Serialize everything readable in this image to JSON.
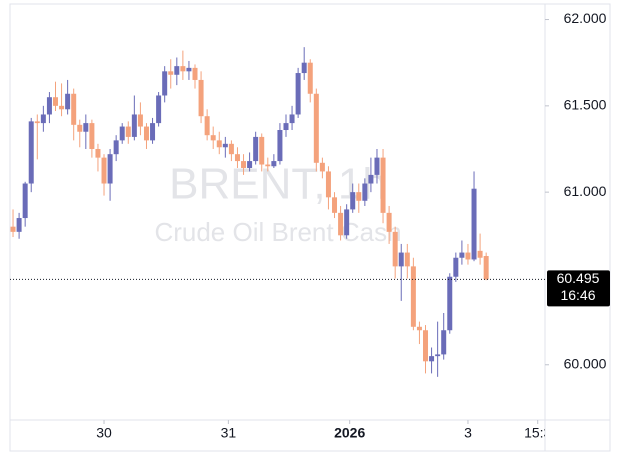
{
  "chart_data": {
    "type": "candlestick",
    "watermark": "BRENT, 1h",
    "watermark_subtitle": "Crude Oil Brent Cash",
    "up_color": "#6a6cb8",
    "down_color": "#f4a27c",
    "open": [
      60.8,
      60.77,
      60.85,
      61.05,
      61.41,
      61.4,
      61.45,
      61.55,
      61.5,
      61.48,
      61.57,
      61.39,
      61.35,
      61.4,
      61.25,
      61.2,
      61.05,
      61.22,
      61.3,
      61.38,
      61.32,
      61.45,
      61.38,
      61.3,
      61.4,
      61.56,
      61.7,
      61.68,
      61.73,
      61.7,
      61.72,
      61.65,
      61.44,
      61.33,
      61.3,
      61.26,
      61.28,
      61.22,
      61.18,
      61.14,
      61.18,
      61.32,
      61.16,
      61.15,
      61.18,
      61.36,
      61.4,
      61.45,
      61.69,
      61.75,
      61.57,
      61.17,
      61.12,
      60.97,
      60.88,
      60.75,
      60.9,
      61.0,
      60.95,
      61.05,
      61.1,
      61.2,
      60.88,
      60.77,
      60.57,
      60.65,
      60.57,
      60.22,
      60.2,
      60.02,
      60.05,
      60.06,
      60.2,
      60.51,
      60.62,
      60.65,
      60.61,
      60.66,
      60.63
    ],
    "high": [
      60.9,
      60.88,
      61.06,
      61.43,
      61.45,
      61.5,
      61.58,
      61.64,
      61.63,
      61.65,
      61.6,
      61.42,
      61.45,
      61.42,
      61.28,
      61.22,
      61.25,
      61.33,
      61.4,
      61.41,
      61.56,
      61.52,
      61.4,
      61.43,
      61.58,
      61.73,
      61.77,
      61.78,
      61.82,
      61.76,
      61.74,
      61.7,
      61.48,
      61.38,
      61.35,
      61.32,
      61.3,
      61.26,
      61.22,
      61.23,
      61.35,
      61.34,
      61.2,
      61.22,
      61.4,
      61.45,
      61.5,
      61.72,
      61.84,
      61.77,
      61.6,
      61.2,
      61.15,
      61.0,
      60.92,
      60.93,
      61.05,
      61.05,
      61.08,
      61.2,
      61.25,
      61.25,
      60.92,
      60.8,
      60.7,
      60.7,
      60.62,
      60.25,
      60.23,
      60.1,
      60.25,
      60.3,
      60.53,
      60.65,
      60.72,
      60.7,
      61.12,
      60.76,
      60.65
    ],
    "low": [
      60.74,
      60.73,
      60.8,
      61.0,
      61.19,
      61.35,
      61.4,
      61.47,
      61.44,
      61.45,
      61.3,
      61.26,
      61.25,
      61.2,
      61.12,
      60.98,
      60.95,
      61.18,
      61.28,
      61.28,
      61.3,
      61.33,
      61.25,
      61.28,
      61.38,
      61.52,
      61.6,
      61.62,
      61.65,
      61.65,
      61.6,
      61.4,
      61.3,
      61.25,
      61.22,
      61.2,
      61.18,
      61.14,
      61.1,
      61.12,
      61.16,
      61.12,
      61.12,
      61.14,
      61.16,
      61.32,
      61.36,
      61.43,
      61.65,
      61.52,
      61.12,
      61.08,
      60.9,
      60.85,
      60.72,
      60.73,
      60.88,
      60.88,
      60.92,
      61.0,
      61.05,
      60.82,
      60.7,
      60.5,
      60.37,
      60.5,
      60.2,
      60.12,
      59.95,
      59.95,
      59.93,
      60.03,
      60.18,
      60.48,
      60.58,
      60.58,
      60.6,
      60.58,
      60.49
    ],
    "close": [
      60.77,
      60.85,
      61.05,
      61.41,
      61.4,
      61.45,
      61.55,
      61.5,
      61.48,
      61.57,
      61.39,
      61.35,
      61.4,
      61.25,
      61.2,
      61.05,
      61.22,
      61.3,
      61.38,
      61.32,
      61.45,
      61.38,
      61.3,
      61.4,
      61.56,
      61.7,
      61.68,
      61.73,
      61.7,
      61.72,
      61.65,
      61.44,
      61.33,
      61.3,
      61.26,
      61.28,
      61.22,
      61.18,
      61.14,
      61.18,
      61.32,
      61.16,
      61.15,
      61.18,
      61.36,
      61.4,
      61.45,
      61.69,
      61.75,
      61.57,
      61.17,
      61.12,
      60.97,
      60.88,
      60.75,
      60.9,
      61.0,
      60.95,
      61.05,
      61.1,
      61.2,
      60.88,
      60.77,
      60.57,
      60.65,
      60.57,
      60.22,
      60.2,
      60.02,
      60.05,
      60.06,
      60.2,
      60.51,
      60.62,
      60.65,
      60.61,
      61.02,
      60.62,
      60.495
    ],
    "xlim": [
      -0.5,
      87.7
    ],
    "xticks": [
      {
        "value": 15,
        "label": "30"
      },
      {
        "value": 35.5,
        "label": "31"
      },
      {
        "value": 55.5,
        "label": "2026"
      },
      {
        "value": 75,
        "label": "3"
      },
      {
        "value": 86.5,
        "label": "15:3"
      }
    ],
    "ylim": [
      59.68,
      62.09
    ],
    "yticks": [
      {
        "value": 62,
        "label": "62.000"
      },
      {
        "value": 61.5,
        "label": "61.500"
      },
      {
        "value": 61,
        "label": "61.000"
      },
      {
        "value": 60,
        "label": "60.000"
      }
    ],
    "last_price": {
      "value": 60.495,
      "label": "60.495"
    },
    "last_time": "16:46"
  }
}
